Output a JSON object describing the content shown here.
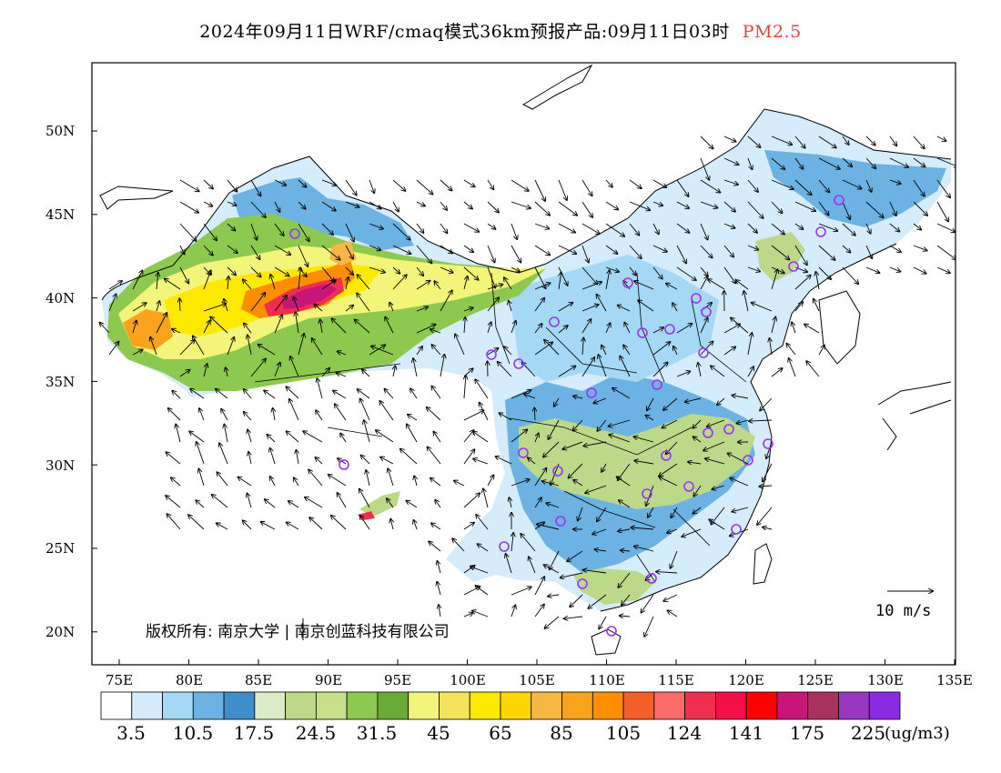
{
  "title": {
    "main": "2024年09月11日WRF/cmaq模式36km预报产品:09月11日03时",
    "variable": "PM2.5",
    "variable_color": "#e8403a"
  },
  "map": {
    "lat_labels": [
      "50N",
      "45N",
      "40N",
      "35N",
      "30N",
      "25N",
      "20N"
    ],
    "lon_labels": [
      "75E",
      "80E",
      "85E",
      "90E",
      "95E",
      "100E",
      "105E",
      "110E",
      "115E",
      "120E",
      "125E",
      "130E",
      "135E"
    ],
    "copyright": "版权所有: 南京大学 | 南京创蓝科技有限公司",
    "wind_reference": "10 m/s"
  },
  "colorbar": {
    "colors": [
      "#ffffff",
      "#d4ecfb",
      "#a5d8f4",
      "#6cb3e3",
      "#3f8dc9",
      "#dcecc6",
      "#bcd98a",
      "#c7e08a",
      "#8dc94e",
      "#6aaa36",
      "#f2f57a",
      "#f2e35a",
      "#fde800",
      "#fdd600",
      "#f7b744",
      "#f8a31b",
      "#fc8e00",
      "#f25f29",
      "#fd6a6a",
      "#ef2f4f",
      "#f40e4a",
      "#fd0000",
      "#c81678",
      "#a9315d",
      "#9a37c0",
      "#8a2be2"
    ],
    "labels": [
      "3.5",
      "10.5",
      "17.5",
      "24.5",
      "31.5",
      "45",
      "65",
      "85",
      "105",
      "124",
      "141",
      "175",
      "225"
    ],
    "unit": "(ug/m3)"
  }
}
